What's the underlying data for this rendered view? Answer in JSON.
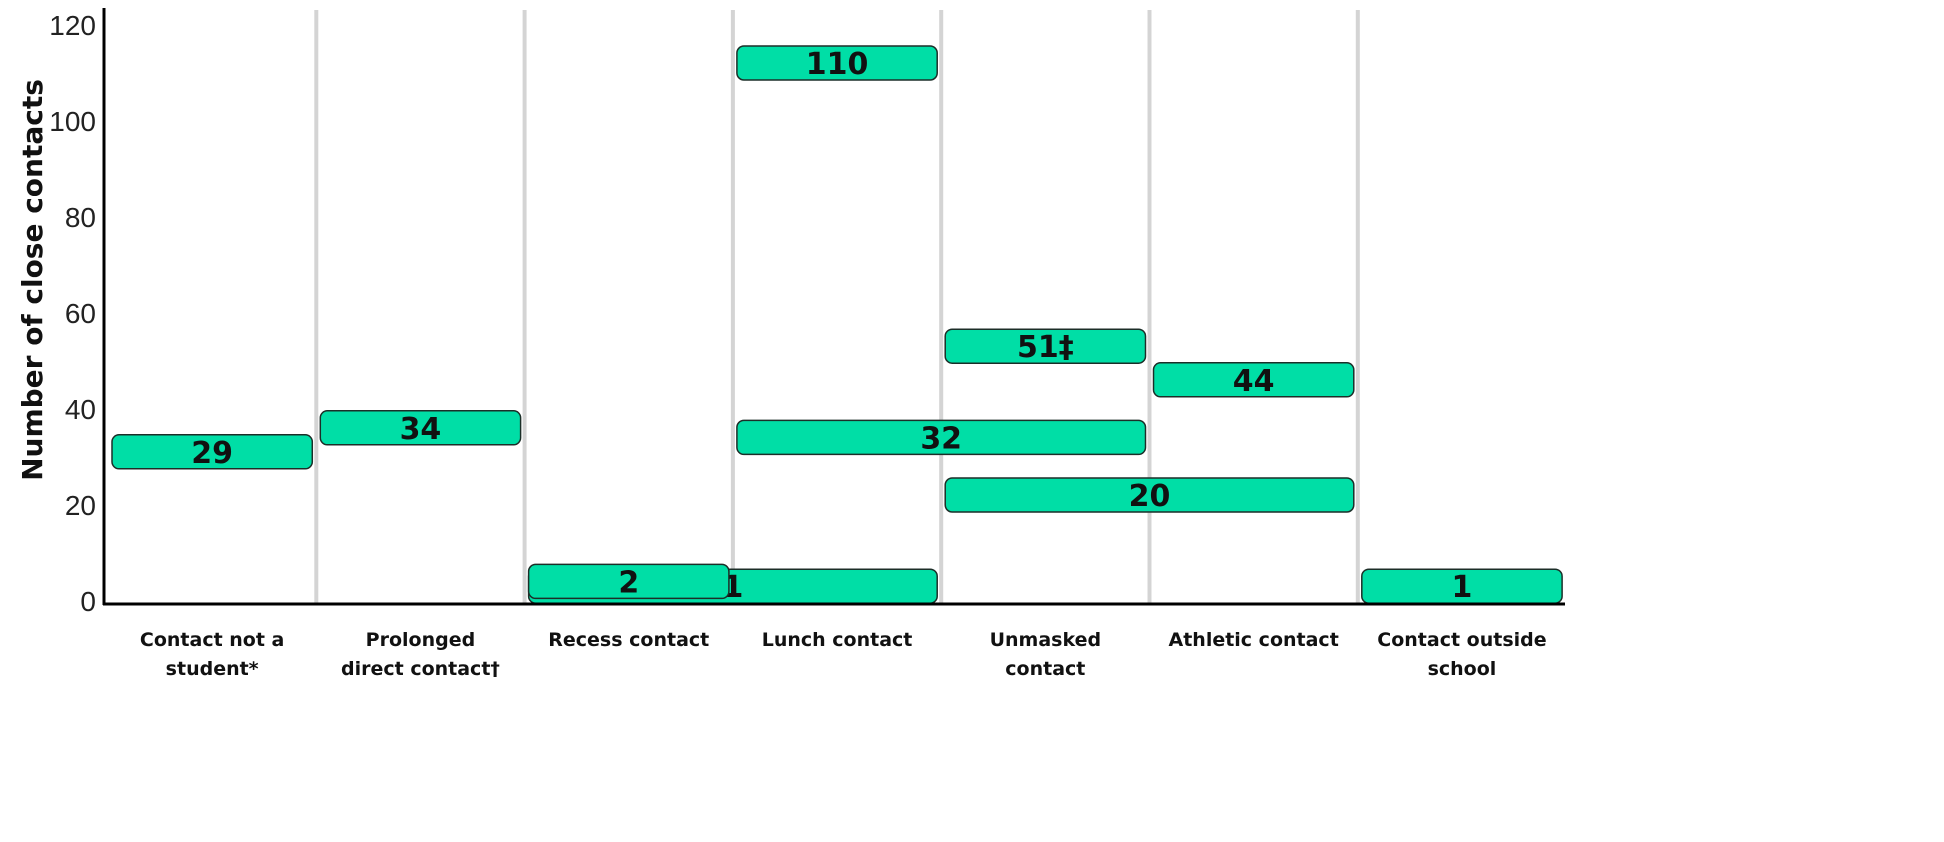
{
  "chart_data": {
    "type": "bar",
    "ylabel": "Number of close contacts",
    "xlabel": "",
    "ylim": [
      0,
      120
    ],
    "yticks": [
      0,
      20,
      40,
      60,
      80,
      100,
      120
    ],
    "grid": "vertical category separators",
    "categories": [
      [
        "Contact not a",
        "student*"
      ],
      [
        "Prolonged",
        "direct contact†"
      ],
      [
        "Recess contact"
      ],
      [
        "Lunch contact"
      ],
      [
        "Unmasked",
        "contact"
      ],
      [
        "Athletic contact"
      ],
      [
        "Contact outside",
        "school"
      ]
    ],
    "bars": [
      {
        "label": "29",
        "value": 29,
        "span": [
          0,
          0
        ]
      },
      {
        "label": "34",
        "value": 34,
        "span": [
          1,
          1
        ]
      },
      {
        "label": "1",
        "value": 1,
        "span": [
          2,
          3
        ]
      },
      {
        "label": "2",
        "value": 2,
        "span": [
          2,
          2
        ]
      },
      {
        "label": "110",
        "value": 110,
        "span": [
          3,
          3
        ]
      },
      {
        "label": "32",
        "value": 32,
        "span": [
          3,
          4
        ]
      },
      {
        "label": "51‡",
        "value": 51,
        "span": [
          4,
          4
        ]
      },
      {
        "label": "20",
        "value": 20,
        "span": [
          4,
          5
        ]
      },
      {
        "label": "44",
        "value": 44,
        "span": [
          5,
          5
        ]
      },
      {
        "label": "1",
        "value": 1,
        "span": [
          6,
          6
        ]
      }
    ],
    "colors": {
      "bar": "#00dea6",
      "bar_border": "#1c2e28",
      "separator": "#d4d4d4",
      "axis": "#000000"
    }
  }
}
